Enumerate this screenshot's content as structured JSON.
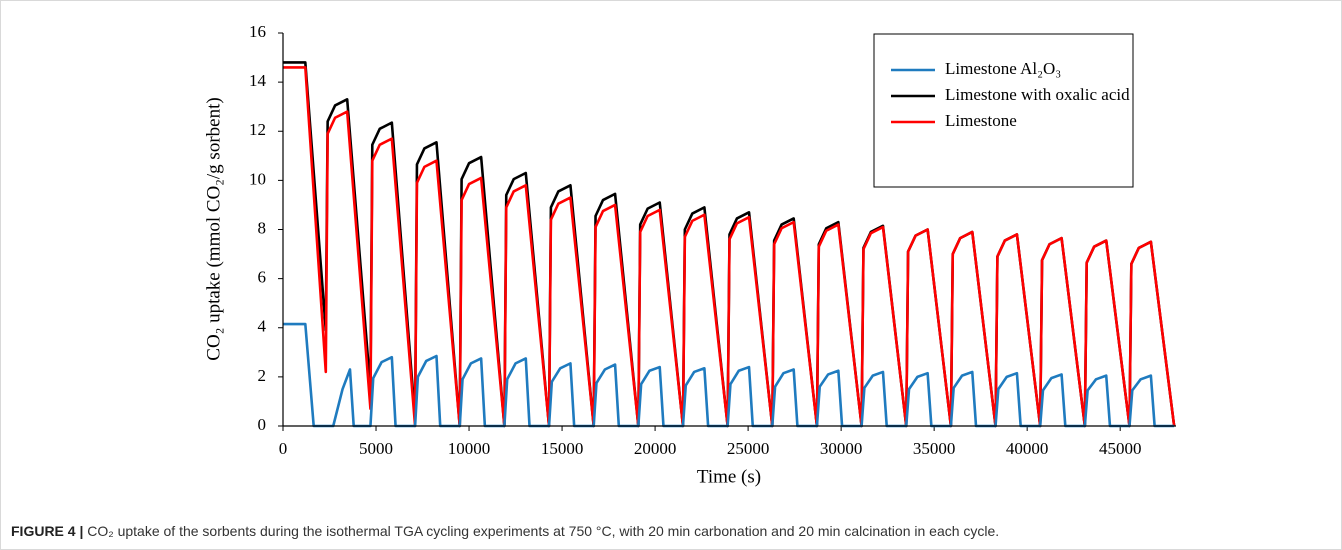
{
  "chart_data": {
    "type": "line",
    "x_label": "Time (s)",
    "y_label": "CO₂ uptake (mmol CO₂/g sorbent)",
    "xlim": [
      0,
      48000
    ],
    "xticks": [
      0,
      5000,
      10000,
      15000,
      20000,
      25000,
      30000,
      35000,
      40000,
      45000
    ],
    "ylim": [
      0,
      16
    ],
    "yticks": [
      0,
      2,
      4,
      6,
      8,
      10,
      12,
      14,
      16
    ],
    "grid": false,
    "legend": "upper right",
    "series": [
      {
        "name": "Limestone with oxalic acid",
        "color": "#000000",
        "x": [
          0,
          1200,
          2300,
          2400,
          2800,
          3450,
          4700,
          4800,
          5200,
          5850,
          7100,
          7200,
          7600,
          8250,
          9500,
          9600,
          10000,
          10650,
          11900,
          12000,
          12400,
          13050,
          14300,
          14400,
          14800,
          15450,
          16700,
          16800,
          17200,
          17850,
          19100,
          19200,
          19600,
          20250,
          21500,
          21600,
          22000,
          22650,
          23900,
          24000,
          24400,
          25050,
          26300,
          26400,
          26800,
          27450,
          28700,
          28800,
          29200,
          29850,
          31100,
          31200,
          31600,
          32250,
          33500,
          33600,
          34000,
          34650,
          35900,
          36000,
          36400,
          37050,
          38300,
          38400,
          38800,
          39450,
          40700,
          40800,
          41200,
          41850,
          43100,
          43200,
          43600,
          44250,
          45500,
          45600,
          46000,
          46650,
          47900
        ],
        "values": [
          14.8,
          14.8,
          3.9,
          12.4,
          13.05,
          13.3,
          1.5,
          11.45,
          12.1,
          12.35,
          0.3,
          10.65,
          11.3,
          11.55,
          0,
          10.05,
          10.7,
          10.95,
          0,
          9.4,
          10.05,
          10.3,
          0,
          8.9,
          9.55,
          9.8,
          0,
          8.55,
          9.2,
          9.45,
          0,
          8.2,
          8.85,
          9.1,
          0,
          8.0,
          8.65,
          8.9,
          0,
          7.8,
          8.45,
          8.7,
          0,
          7.55,
          8.2,
          8.45,
          0,
          7.4,
          8.05,
          8.3,
          0,
          7.25,
          7.9,
          8.15,
          0,
          7.1,
          7.75,
          8.0,
          0,
          7.0,
          7.65,
          7.9,
          0,
          6.9,
          7.55,
          7.8,
          0,
          6.75,
          7.4,
          7.65,
          0,
          6.65,
          7.3,
          7.55,
          0,
          6.6,
          7.25,
          7.5,
          0
        ]
      },
      {
        "name": "Limestone",
        "color": "#ff0000",
        "x": [
          0,
          1200,
          2300,
          2400,
          2800,
          3450,
          4700,
          4800,
          5200,
          5850,
          7100,
          7200,
          7600,
          8250,
          9500,
          9600,
          10000,
          10650,
          11900,
          12000,
          12400,
          13050,
          14300,
          14400,
          14800,
          15450,
          16700,
          16800,
          17200,
          17850,
          19100,
          19200,
          19600,
          20250,
          21500,
          21600,
          22000,
          22650,
          23900,
          24000,
          24400,
          25050,
          26300,
          26400,
          26800,
          27450,
          28700,
          28800,
          29200,
          29850,
          31100,
          31200,
          31600,
          32250,
          33500,
          33600,
          34000,
          34650,
          35900,
          36000,
          36400,
          37050,
          38300,
          38400,
          38800,
          39450,
          40700,
          40800,
          41200,
          41850,
          43100,
          43200,
          43600,
          44250,
          45500,
          45600,
          46000,
          46650,
          47900
        ],
        "values": [
          14.6,
          14.6,
          2.2,
          11.9,
          12.55,
          12.8,
          0.7,
          10.8,
          11.45,
          11.7,
          0,
          9.9,
          10.55,
          10.8,
          0,
          9.2,
          9.85,
          10.1,
          0,
          8.9,
          9.55,
          9.8,
          0,
          8.4,
          9.05,
          9.3,
          0,
          8.1,
          8.75,
          9.0,
          0,
          7.9,
          8.55,
          8.8,
          0,
          7.7,
          8.35,
          8.6,
          0,
          7.6,
          8.25,
          8.5,
          0,
          7.4,
          8.05,
          8.3,
          0,
          7.3,
          7.95,
          8.2,
          0,
          7.2,
          7.85,
          8.1,
          0,
          7.1,
          7.75,
          8.0,
          0,
          7.0,
          7.65,
          7.9,
          0,
          6.9,
          7.55,
          7.8,
          0,
          6.75,
          7.4,
          7.65,
          0,
          6.65,
          7.3,
          7.55,
          0,
          6.6,
          7.25,
          7.5,
          0
        ]
      },
      {
        "name": "Limestone Al₂O₃",
        "color": "#1f7bbf",
        "x": [
          0,
          1200,
          1650,
          2700,
          3200,
          3600,
          3800,
          4700,
          4850,
          5300,
          5850,
          6050,
          7100,
          7250,
          7700,
          8250,
          8450,
          9500,
          9650,
          10100,
          10650,
          10850,
          11900,
          12050,
          12500,
          13050,
          13250,
          14300,
          14450,
          14900,
          15450,
          15650,
          16700,
          16850,
          17300,
          17850,
          18050,
          19100,
          19250,
          19700,
          20250,
          20450,
          21500,
          21650,
          22100,
          22650,
          22850,
          23900,
          24050,
          24500,
          25050,
          25250,
          26300,
          26450,
          26900,
          27450,
          27650,
          28700,
          28850,
          29300,
          29850,
          30050,
          31100,
          31250,
          31700,
          32250,
          32450,
          33500,
          33650,
          34100,
          34650,
          34850,
          35900,
          36050,
          36500,
          37050,
          37250,
          38300,
          38450,
          38900,
          39450,
          39650,
          40700,
          40850,
          41300,
          41850,
          42050,
          43100,
          43250,
          43700,
          44250,
          44450,
          45500,
          45650,
          46100,
          46650,
          46850,
          47900
        ],
        "values": [
          4.15,
          4.15,
          0,
          0,
          1.5,
          2.3,
          0,
          0,
          1.95,
          2.6,
          2.8,
          0,
          0,
          2.0,
          2.65,
          2.85,
          0,
          0,
          1.9,
          2.55,
          2.75,
          0,
          0,
          1.9,
          2.55,
          2.75,
          0,
          0,
          1.8,
          2.35,
          2.55,
          0,
          0,
          1.75,
          2.3,
          2.5,
          0,
          0,
          1.7,
          2.25,
          2.4,
          0,
          0,
          1.65,
          2.2,
          2.35,
          0,
          0,
          1.7,
          2.25,
          2.4,
          0,
          0,
          1.6,
          2.15,
          2.3,
          0,
          0,
          1.6,
          2.1,
          2.25,
          0,
          0,
          1.55,
          2.05,
          2.2,
          0,
          0,
          1.5,
          2.0,
          2.15,
          0,
          0,
          1.55,
          2.05,
          2.2,
          0,
          0,
          1.5,
          2.0,
          2.15,
          0,
          0,
          1.45,
          1.95,
          2.1,
          0,
          0,
          1.45,
          1.9,
          2.05,
          0,
          0,
          1.45,
          1.9,
          2.05,
          0,
          0
        ]
      }
    ]
  },
  "caption": {
    "label": "FIGURE 4 |",
    "text": "CO₂ uptake of the sorbents during the isothermal TGA cycling experiments at 750 °C, with 20 min carbonation and 20 min calcination in each cycle."
  }
}
